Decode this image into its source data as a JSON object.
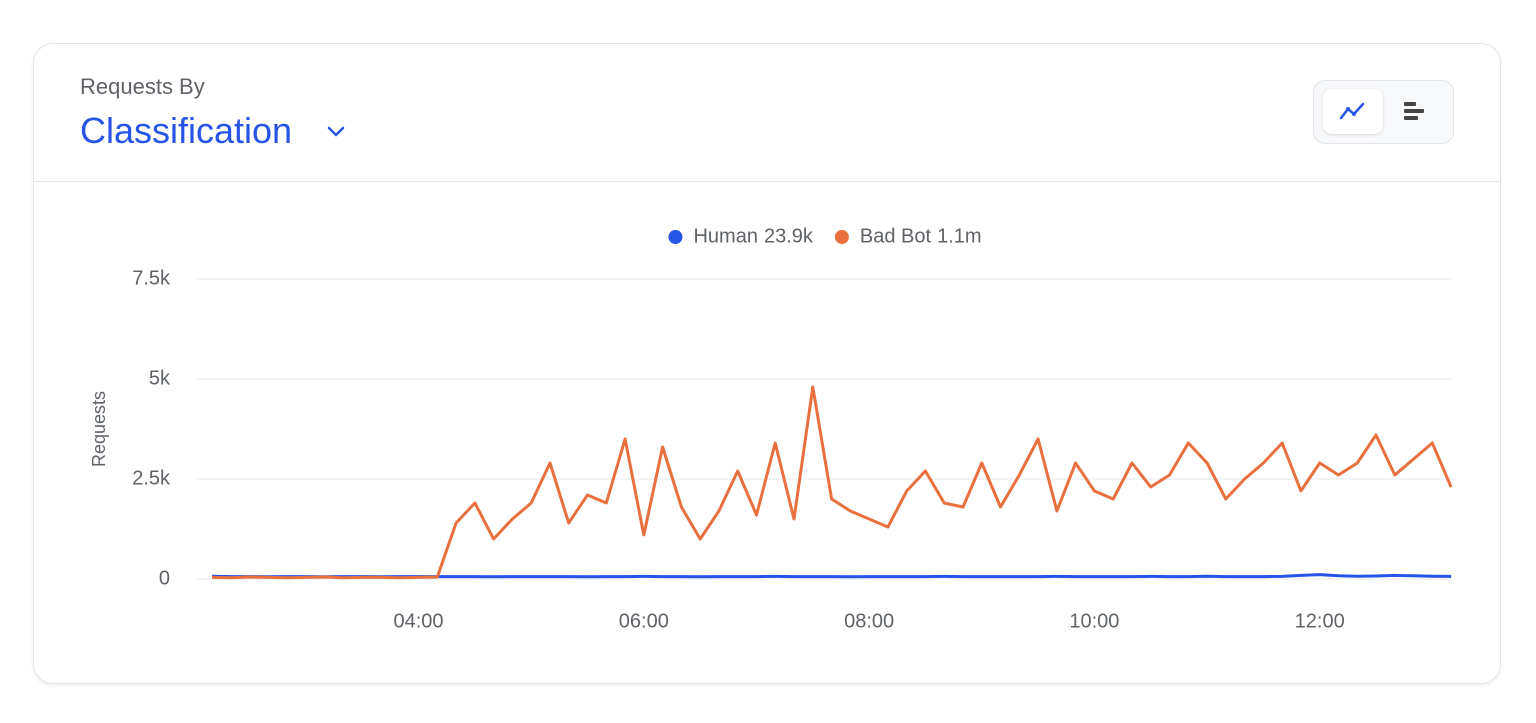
{
  "header": {
    "subtitle": "Requests By",
    "title": "Classification"
  },
  "chart_data": {
    "type": "line",
    "y_label": "Requests",
    "x": [
      "02:10",
      "02:20",
      "02:30",
      "02:40",
      "02:50",
      "03:00",
      "03:10",
      "03:20",
      "03:30",
      "03:40",
      "03:50",
      "04:00",
      "04:10",
      "04:20",
      "04:30",
      "04:40",
      "04:50",
      "05:00",
      "05:10",
      "05:20",
      "05:30",
      "05:40",
      "05:50",
      "06:00",
      "06:10",
      "06:20",
      "06:30",
      "06:40",
      "06:50",
      "07:00",
      "07:10",
      "07:20",
      "07:30",
      "07:40",
      "07:50",
      "08:00",
      "08:10",
      "08:20",
      "08:30",
      "08:40",
      "08:50",
      "09:00",
      "09:10",
      "09:20",
      "09:30",
      "09:40",
      "09:50",
      "10:00",
      "10:10",
      "10:20",
      "10:30",
      "10:40",
      "10:50",
      "11:00",
      "11:10",
      "11:20",
      "11:30",
      "11:40",
      "11:50",
      "12:00",
      "12:10",
      "12:20",
      "12:30",
      "12:40",
      "12:50",
      "13:00",
      "13:10"
    ],
    "xlim": [
      "02:02",
      "13:11"
    ],
    "xticks": [
      "04:00",
      "06:00",
      "08:00",
      "10:00",
      "12:00"
    ],
    "ylim": [
      0,
      7500
    ],
    "yticks": [
      0,
      {
        "value": 2500,
        "label": "2.5k"
      },
      {
        "value": 5000,
        "label": "5k"
      },
      {
        "value": 7500,
        "label": "7.5k"
      }
    ],
    "grid": true,
    "series": [
      {
        "name": "Human",
        "total_label": "23.9k",
        "color": "#2654e6",
        "values": [
          70,
          60,
          60,
          55,
          60,
          60,
          55,
          60,
          60,
          55,
          60,
          60,
          60,
          60,
          60,
          55,
          60,
          60,
          60,
          60,
          55,
          60,
          60,
          65,
          60,
          60,
          55,
          60,
          60,
          60,
          65,
          60,
          60,
          60,
          55,
          60,
          60,
          60,
          60,
          65,
          60,
          60,
          60,
          60,
          60,
          65,
          60,
          60,
          60,
          60,
          65,
          60,
          60,
          70,
          60,
          60,
          60,
          65,
          90,
          110,
          80,
          70,
          75,
          90,
          80,
          70,
          65
        ]
      },
      {
        "name": "Bad Bot",
        "total_label": "1.1m",
        "color": "#e8703e",
        "values": [
          40,
          30,
          50,
          40,
          30,
          40,
          50,
          30,
          40,
          40,
          30,
          40,
          50,
          1400,
          1900,
          1000,
          1500,
          1900,
          2900,
          1400,
          2100,
          1900,
          3500,
          1100,
          3300,
          1800,
          1000,
          1700,
          2700,
          1600,
          3400,
          1500,
          4800,
          2000,
          1700,
          1500,
          1300,
          2200,
          2700,
          1900,
          1800,
          2900,
          1800,
          2600,
          3500,
          1700,
          2900,
          2200,
          2000,
          2900,
          2300,
          2600,
          3400,
          2900,
          2000,
          2500,
          2900,
          3400,
          2200,
          2900,
          2600,
          2900,
          3600,
          2600,
          3000,
          3400,
          2300
        ]
      }
    ]
  }
}
